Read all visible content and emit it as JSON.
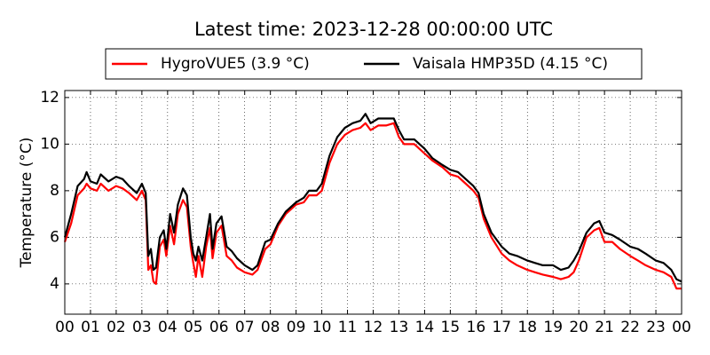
{
  "chart_data": {
    "type": "line",
    "title": "Latest time: 2023-12-28 00:00:00 UTC",
    "ylabel": "Temperature (°C)",
    "grid": true,
    "legend": "upper center",
    "ylim": [
      2.7,
      12.3
    ],
    "yticks": [
      4,
      6,
      8,
      10,
      12
    ],
    "xlim": [
      0,
      24
    ],
    "xticks": [
      {
        "value": 0,
        "label": "00"
      },
      {
        "value": 1,
        "label": "01"
      },
      {
        "value": 2,
        "label": "02"
      },
      {
        "value": 3,
        "label": "03"
      },
      {
        "value": 4,
        "label": "04"
      },
      {
        "value": 5,
        "label": "05"
      },
      {
        "value": 6,
        "label": "06"
      },
      {
        "value": 7,
        "label": "07"
      },
      {
        "value": 8,
        "label": "08"
      },
      {
        "value": 9,
        "label": "09"
      },
      {
        "value": 10,
        "label": "10"
      },
      {
        "value": 11,
        "label": "11"
      },
      {
        "value": 12,
        "label": "12"
      },
      {
        "value": 13,
        "label": "13"
      },
      {
        "value": 14,
        "label": "14"
      },
      {
        "value": 15,
        "label": "15"
      },
      {
        "value": 16,
        "label": "16"
      },
      {
        "value": 17,
        "label": "17"
      },
      {
        "value": 18,
        "label": "18"
      },
      {
        "value": 19,
        "label": "19"
      },
      {
        "value": 20,
        "label": "20"
      },
      {
        "value": 21,
        "label": "21"
      },
      {
        "value": 22,
        "label": "22"
      },
      {
        "value": 23,
        "label": "23"
      },
      {
        "value": 24,
        "label": "00"
      }
    ],
    "x": [
      0,
      0.25,
      0.5,
      0.75,
      0.85,
      1,
      1.25,
      1.4,
      1.7,
      2,
      2.25,
      2.5,
      2.8,
      3,
      3.15,
      3.25,
      3.35,
      3.45,
      3.55,
      3.7,
      3.85,
      3.95,
      4.1,
      4.25,
      4.4,
      4.6,
      4.75,
      4.9,
      5,
      5.1,
      5.2,
      5.35,
      5.5,
      5.65,
      5.75,
      5.9,
      6.1,
      6.3,
      6.5,
      6.7,
      7,
      7.3,
      7.5,
      7.8,
      8,
      8.3,
      8.6,
      9,
      9.3,
      9.5,
      9.8,
      10,
      10.3,
      10.6,
      10.9,
      11.2,
      11.5,
      11.7,
      11.9,
      12.2,
      12.5,
      12.8,
      13,
      13.2,
      13.6,
      14,
      14.3,
      14.7,
      15,
      15.3,
      15.6,
      15.9,
      16.1,
      16.3,
      16.6,
      17,
      17.3,
      17.6,
      18,
      18.3,
      18.6,
      19,
      19.3,
      19.6,
      19.8,
      20,
      20.3,
      20.6,
      20.8,
      21,
      21.3,
      21.6,
      22,
      22.3,
      22.6,
      23,
      23.3,
      23.6,
      23.8,
      24
    ],
    "series": [
      {
        "name": "HygroVUE5 (3.9 °C)",
        "color": "#ff0000",
        "values": [
          5.8,
          6.6,
          7.8,
          8.1,
          8.3,
          8.1,
          8.0,
          8.3,
          8.0,
          8.2,
          8.1,
          7.9,
          7.6,
          8.0,
          7.6,
          4.6,
          4.8,
          4.1,
          4.0,
          5.6,
          5.9,
          5.2,
          6.5,
          5.7,
          7.0,
          7.6,
          7.3,
          5.6,
          4.9,
          4.3,
          5.2,
          4.3,
          5.6,
          6.4,
          5.1,
          6.2,
          6.5,
          5.2,
          5.0,
          4.7,
          4.5,
          4.4,
          4.6,
          5.5,
          5.7,
          6.5,
          7.0,
          7.4,
          7.5,
          7.8,
          7.8,
          8.0,
          9.2,
          10.0,
          10.4,
          10.6,
          10.7,
          10.9,
          10.6,
          10.8,
          10.8,
          10.9,
          10.3,
          10.0,
          10.0,
          9.6,
          9.3,
          9.0,
          8.7,
          8.6,
          8.3,
          8.0,
          7.7,
          6.8,
          6.0,
          5.3,
          5.0,
          4.8,
          4.6,
          4.5,
          4.4,
          4.3,
          4.2,
          4.3,
          4.5,
          5.0,
          6.0,
          6.3,
          6.4,
          5.8,
          5.8,
          5.5,
          5.2,
          5.0,
          4.8,
          4.6,
          4.5,
          4.3,
          3.8,
          3.8
        ]
      },
      {
        "name": "Vaisala HMP35D (4.15 °C)",
        "color": "#000000",
        "values": [
          6.0,
          7.0,
          8.2,
          8.5,
          8.8,
          8.4,
          8.3,
          8.7,
          8.4,
          8.6,
          8.5,
          8.2,
          7.9,
          8.3,
          7.9,
          5.2,
          5.5,
          4.6,
          4.7,
          6.0,
          6.3,
          5.5,
          7.0,
          6.2,
          7.4,
          8.1,
          7.8,
          6.0,
          5.3,
          5.0,
          5.6,
          5.0,
          6.0,
          7.0,
          5.5,
          6.6,
          6.9,
          5.6,
          5.4,
          5.1,
          4.8,
          4.6,
          4.8,
          5.8,
          5.9,
          6.6,
          7.1,
          7.5,
          7.7,
          8.0,
          8.0,
          8.3,
          9.5,
          10.3,
          10.7,
          10.9,
          11.0,
          11.3,
          10.9,
          11.1,
          11.1,
          11.1,
          10.6,
          10.2,
          10.2,
          9.8,
          9.4,
          9.1,
          8.9,
          8.8,
          8.5,
          8.2,
          7.9,
          7.0,
          6.2,
          5.6,
          5.3,
          5.2,
          5.0,
          4.9,
          4.8,
          4.8,
          4.6,
          4.7,
          5.0,
          5.4,
          6.2,
          6.6,
          6.7,
          6.2,
          6.1,
          5.9,
          5.6,
          5.5,
          5.3,
          5.0,
          4.9,
          4.6,
          4.2,
          4.1
        ]
      }
    ]
  }
}
